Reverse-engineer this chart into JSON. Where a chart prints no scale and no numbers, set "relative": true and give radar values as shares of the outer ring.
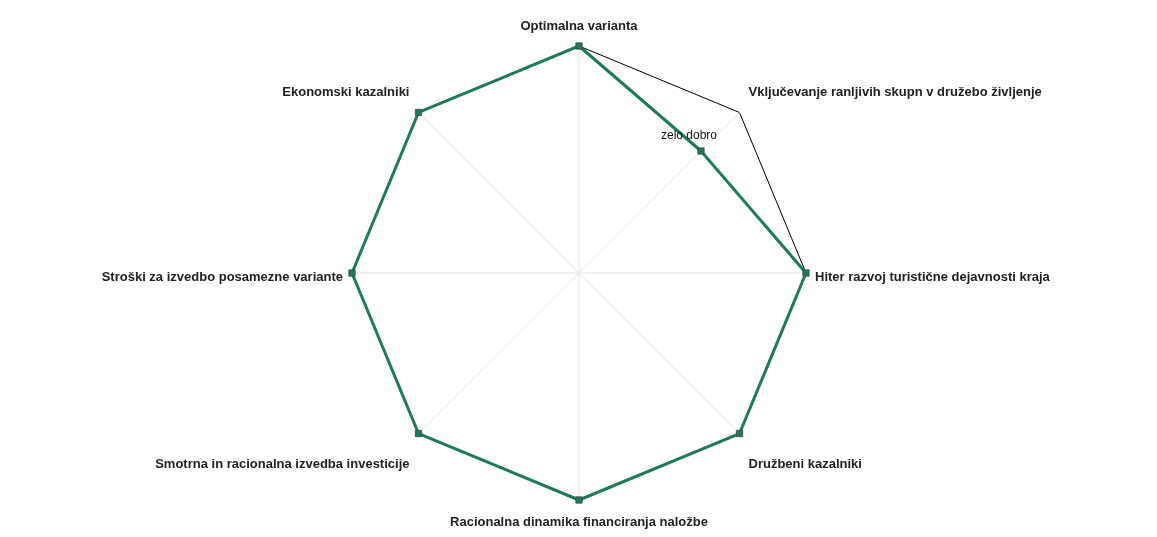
{
  "chart_data": {
    "type": "radar",
    "relative": true,
    "grid": true,
    "marker": "square",
    "legend": false,
    "categories": [
      "Optimalna varianta",
      "Vključevanje ranljivih skupn v družebo življenje",
      "Hiter razvoj turistične dejavnosti kraja",
      "Družbeni kazalniki",
      "Racionalna dinamika financiranja naložbe",
      "Smotrna in racionalna izvedba investicije",
      "Stroški za izvedbo posamezne variante",
      "Ekonomski kazalniki"
    ],
    "series": [
      {
        "color": "#1f7a55",
        "values": [
          1,
          0.76,
          1,
          1,
          1,
          1,
          1,
          1
        ]
      }
    ],
    "annotations": [
      {
        "text": "zelo dobro",
        "x": "Vključevanje ranljivih skupn v družebo življenje"
      }
    ]
  }
}
